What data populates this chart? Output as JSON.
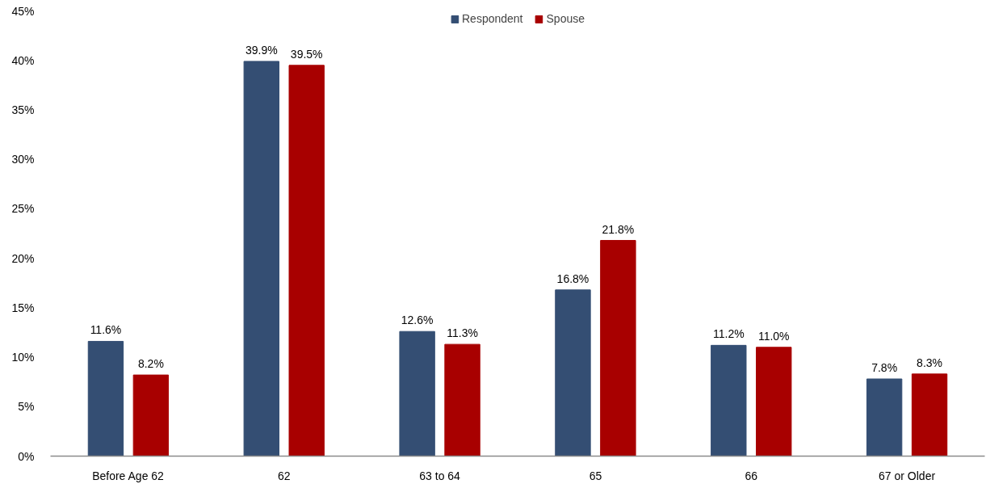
{
  "chart_data": {
    "type": "bar",
    "categories": [
      "Before Age 62",
      "62",
      "63 to 64",
      "65",
      "66",
      "67 or Older"
    ],
    "series": [
      {
        "name": "Respondent",
        "color": "#344e73",
        "values": [
          11.6,
          39.9,
          12.6,
          16.8,
          11.2,
          7.8
        ],
        "value_labels": [
          "11.6%",
          "39.9%",
          "12.6%",
          "16.8%",
          "11.2%",
          "7.8%"
        ]
      },
      {
        "name": "Spouse",
        "color": "#a80000",
        "values": [
          8.2,
          39.5,
          11.3,
          21.8,
          11.0,
          8.3
        ],
        "value_labels": [
          "8.2%",
          "39.5%",
          "11.3%",
          "21.8%",
          "11.0%",
          "8.3%"
        ]
      }
    ],
    "ylim": [
      0,
      45
    ],
    "yticks": [
      {
        "value": 0,
        "label": "0%"
      },
      {
        "value": 5,
        "label": "5%"
      },
      {
        "value": 10,
        "label": "10%"
      },
      {
        "value": 15,
        "label": "15%"
      },
      {
        "value": 20,
        "label": "20%"
      },
      {
        "value": 25,
        "label": "25%"
      },
      {
        "value": 30,
        "label": "30%"
      },
      {
        "value": 35,
        "label": "35%"
      },
      {
        "value": 40,
        "label": "40%"
      },
      {
        "value": 45,
        "label": "45%"
      }
    ],
    "legend": "top"
  }
}
